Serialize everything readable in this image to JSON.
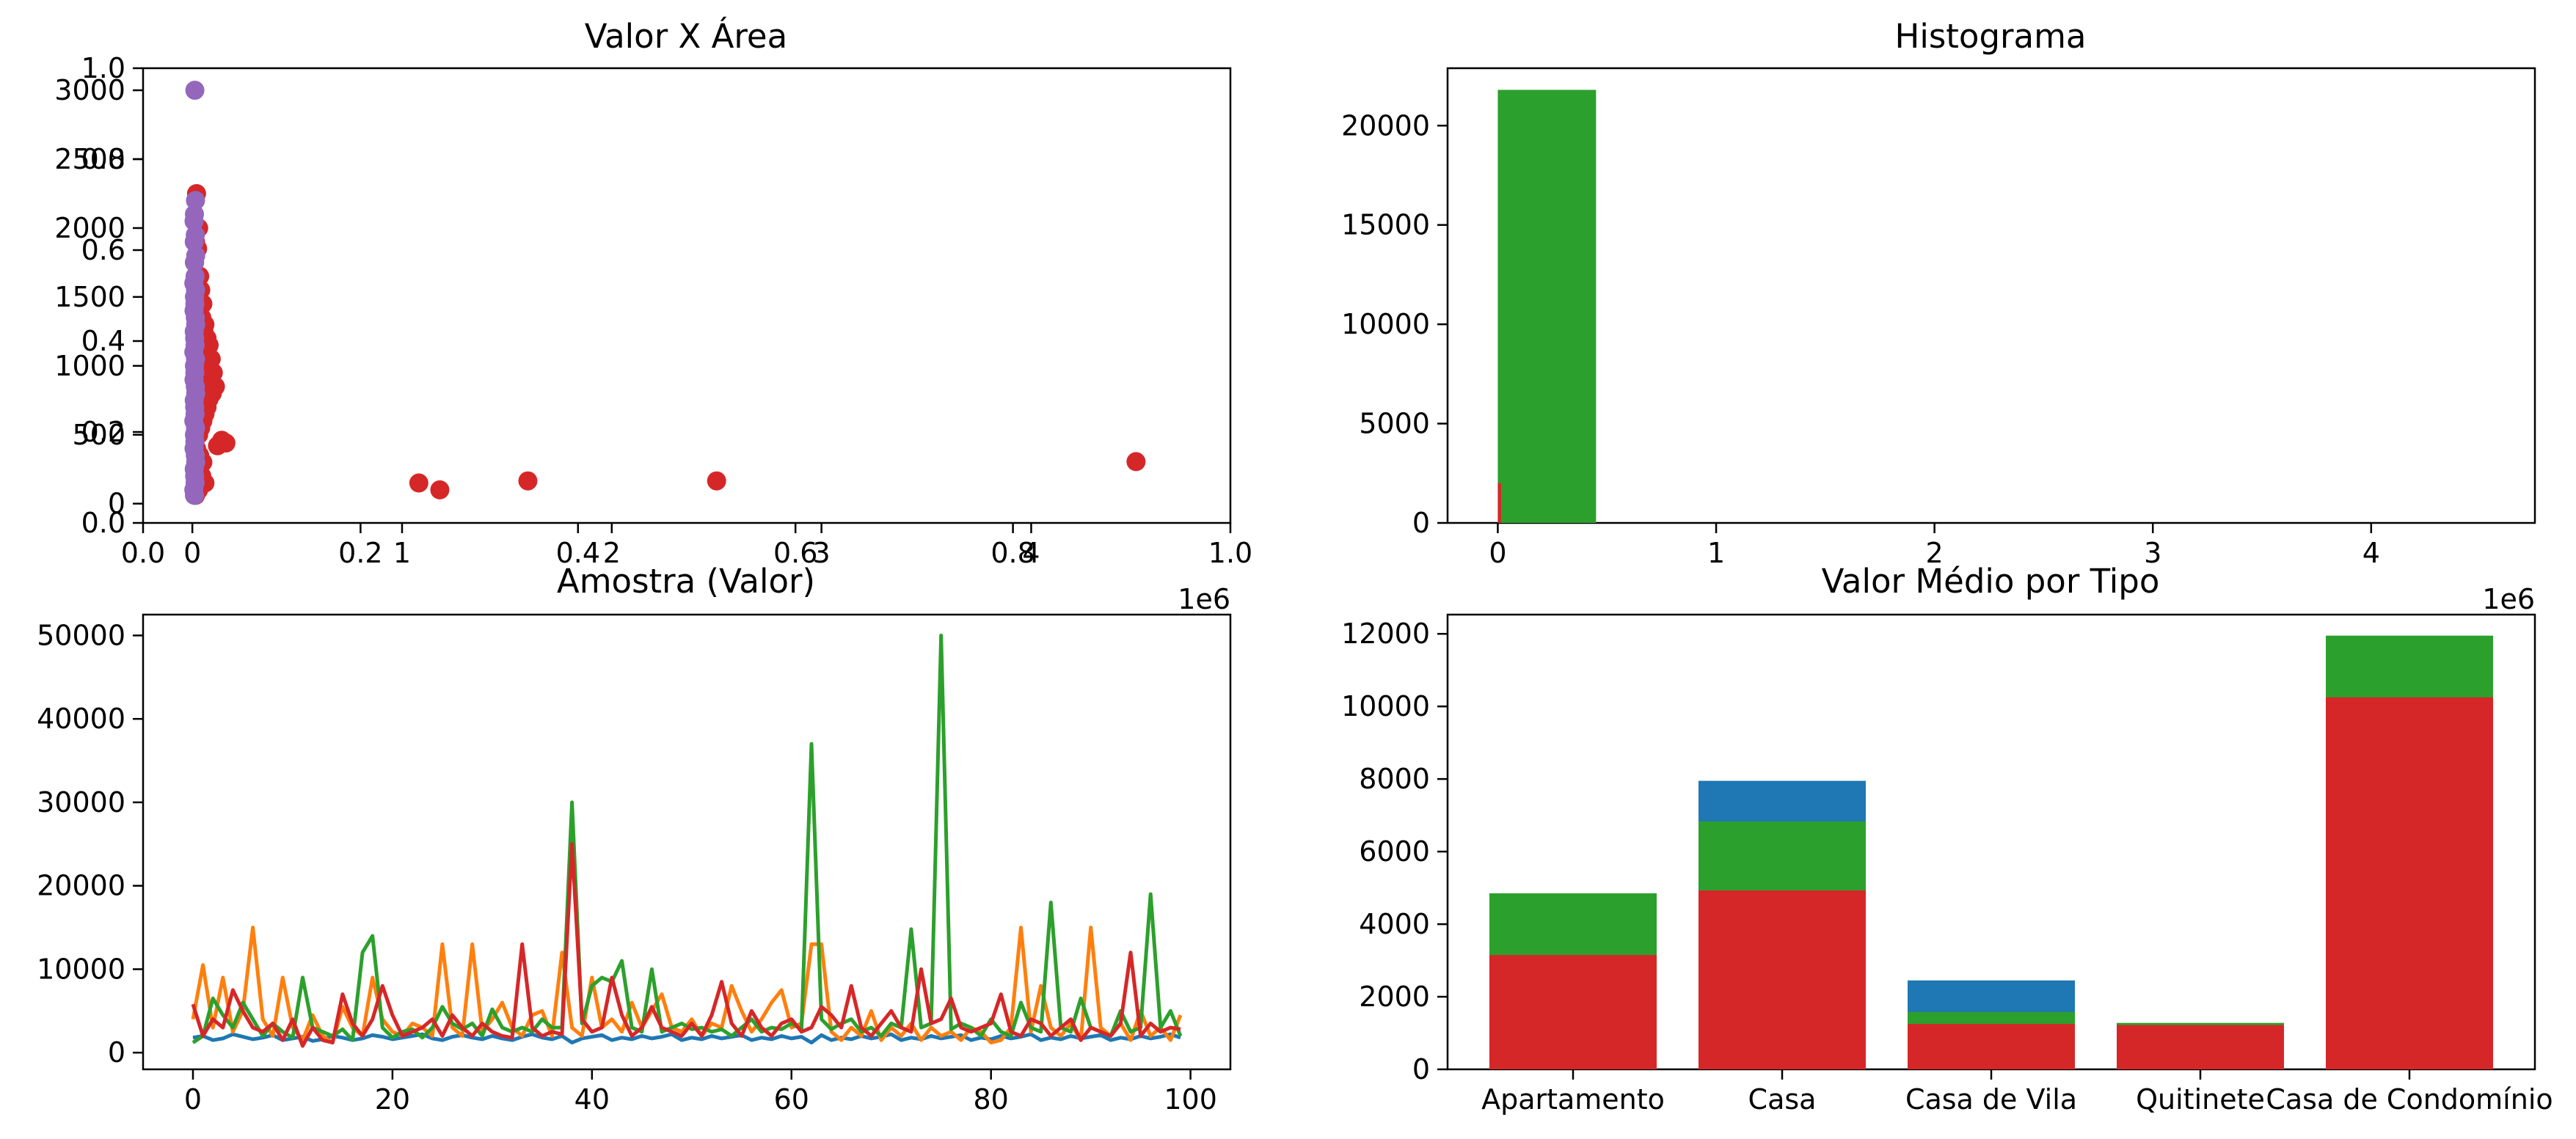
{
  "colors": {
    "blue": "#1f77b4",
    "orange": "#ff7f0e",
    "green": "#2ca02c",
    "red": "#d62728",
    "purple": "#9467bd"
  },
  "chart_data": [
    {
      "type": "scatter",
      "title": "Valor X Área",
      "xlabel": "",
      "ylabel": "",
      "overlay_axes": {
        "xlim": [
          0,
          1
        ],
        "ylim": [
          0,
          1
        ],
        "xticks": [
          "0.0",
          "0.2",
          "0.4",
          "0.6",
          "0.8",
          "1.0"
        ],
        "yticks": [
          "0.0",
          "0.2",
          "0.4",
          "0.6",
          "0.8",
          "1.0"
        ]
      },
      "xlim": [
        -235000,
        4950000
      ],
      "ylim": [
        -140,
        3160
      ],
      "x_scale_label": "1e6",
      "xticks": [
        {
          "value": 0,
          "label": "0"
        },
        {
          "value": 1000000,
          "label": "1"
        },
        {
          "value": 2000000,
          "label": "2"
        },
        {
          "value": 3000000,
          "label": "3"
        },
        {
          "value": 4000000,
          "label": "4"
        }
      ],
      "yticks": [
        {
          "value": 0,
          "label": "0"
        },
        {
          "value": 500,
          "label": "500"
        },
        {
          "value": 1000,
          "label": "1000"
        },
        {
          "value": 1500,
          "label": "1500"
        },
        {
          "value": 2000,
          "label": "2000"
        },
        {
          "value": 2500,
          "label": "2500"
        },
        {
          "value": 3000,
          "label": "3000"
        }
      ],
      "grid": false,
      "series": [
        {
          "color": "red",
          "points": [
            [
              20000,
              2250
            ],
            [
              30000,
              2000
            ],
            [
              15000,
              1900
            ],
            [
              25000,
              1850
            ],
            [
              10000,
              1750
            ],
            [
              35000,
              1650
            ],
            [
              8000,
              1600
            ],
            [
              40000,
              1550
            ],
            [
              30000,
              1500
            ],
            [
              50000,
              1450
            ],
            [
              12000,
              1400
            ],
            [
              45000,
              1350
            ],
            [
              60000,
              1300
            ],
            [
              55000,
              1250
            ],
            [
              70000,
              1200
            ],
            [
              80000,
              1150
            ],
            [
              65000,
              1100
            ],
            [
              90000,
              1050
            ],
            [
              75000,
              1000
            ],
            [
              100000,
              950
            ],
            [
              85000,
              900
            ],
            [
              110000,
              850
            ],
            [
              95000,
              800
            ],
            [
              80000,
              760
            ],
            [
              70000,
              700
            ],
            [
              60000,
              650
            ],
            [
              50000,
              600
            ],
            [
              40000,
              550
            ],
            [
              30000,
              500
            ],
            [
              140000,
              460
            ],
            [
              160000,
              440
            ],
            [
              120000,
              420
            ],
            [
              20000,
              400
            ],
            [
              35000,
              350
            ],
            [
              50000,
              300
            ],
            [
              25000,
              250
            ],
            [
              45000,
              200
            ],
            [
              60000,
              150
            ],
            [
              30000,
              100
            ],
            [
              15000,
              60
            ],
            [
              1080000,
              150
            ],
            [
              1180000,
              100
            ],
            [
              1600000,
              165
            ],
            [
              2500000,
              165
            ],
            [
              4500000,
              305
            ]
          ]
        },
        {
          "color": "purple",
          "points": [
            [
              12000,
              3000
            ],
            [
              15000,
              2200
            ],
            [
              10000,
              2100
            ],
            [
              8000,
              2050
            ],
            [
              14000,
              1950
            ],
            [
              9000,
              1900
            ],
            [
              16000,
              1800
            ],
            [
              11000,
              1750
            ],
            [
              13000,
              1650
            ],
            [
              7000,
              1600
            ],
            [
              15000,
              1550
            ],
            [
              10000,
              1500
            ],
            [
              12000,
              1450
            ],
            [
              8000,
              1400
            ],
            [
              14000,
              1350
            ],
            [
              16000,
              1300
            ],
            [
              9000,
              1250
            ],
            [
              11000,
              1200
            ],
            [
              13000,
              1150
            ],
            [
              7000,
              1100
            ],
            [
              15000,
              1050
            ],
            [
              10000,
              1000
            ],
            [
              12000,
              950
            ],
            [
              8000,
              900
            ],
            [
              14000,
              850
            ],
            [
              16000,
              800
            ],
            [
              9000,
              750
            ],
            [
              11000,
              700
            ],
            [
              13000,
              650
            ],
            [
              7000,
              600
            ],
            [
              15000,
              550
            ],
            [
              10000,
              500
            ],
            [
              12000,
              450
            ],
            [
              8000,
              400
            ],
            [
              14000,
              350
            ],
            [
              16000,
              300
            ],
            [
              9000,
              250
            ],
            [
              11000,
              200
            ],
            [
              13000,
              150
            ],
            [
              7000,
              100
            ],
            [
              10000,
              60
            ]
          ]
        }
      ]
    },
    {
      "type": "histogram",
      "title": "Histograma",
      "xlabel": "",
      "ylabel": "",
      "xlim": [
        -230000,
        4750000
      ],
      "ylim": [
        0,
        22890
      ],
      "x_scale_label": "1e6",
      "xticks": [
        {
          "value": 0,
          "label": "0"
        },
        {
          "value": 1000000,
          "label": "1"
        },
        {
          "value": 2000000,
          "label": "2"
        },
        {
          "value": 3000000,
          "label": "3"
        },
        {
          "value": 4000000,
          "label": "4"
        }
      ],
      "yticks": [
        {
          "value": 0,
          "label": "0"
        },
        {
          "value": 5000,
          "label": "5000"
        },
        {
          "value": 10000,
          "label": "10000"
        },
        {
          "value": 15000,
          "label": "15000"
        },
        {
          "value": 20000,
          "label": "20000"
        }
      ],
      "grid": false,
      "series": [
        {
          "color": "green",
          "bins": [
            [
              0,
              450000,
              21800
            ]
          ]
        },
        {
          "color": "red",
          "bins": [
            [
              0,
              15000,
              2000
            ]
          ]
        }
      ]
    },
    {
      "type": "line",
      "title": "Amostra (Valor)",
      "xlabel": "",
      "ylabel": "",
      "xlim": [
        -5,
        104
      ],
      "ylim": [
        -2000,
        52500
      ],
      "xticks": [
        {
          "value": 0,
          "label": "0"
        },
        {
          "value": 20,
          "label": "20"
        },
        {
          "value": 40,
          "label": "40"
        },
        {
          "value": 60,
          "label": "60"
        },
        {
          "value": 80,
          "label": "80"
        },
        {
          "value": 100,
          "label": "100"
        }
      ],
      "yticks": [
        {
          "value": 0,
          "label": "0"
        },
        {
          "value": 10000,
          "label": "10000"
        },
        {
          "value": 20000,
          "label": "20000"
        },
        {
          "value": 30000,
          "label": "30000"
        },
        {
          "value": 40000,
          "label": "40000"
        },
        {
          "value": 50000,
          "label": "50000"
        }
      ],
      "grid": false,
      "series": [
        {
          "color": "blue",
          "values": [
            1800,
            2000,
            1500,
            1700,
            2200,
            1900,
            1600,
            1800,
            2100,
            1500,
            1700,
            1900,
            1400,
            1600,
            2000,
            1800,
            1500,
            1700,
            2100,
            1900,
            1600,
            1800,
            2000,
            2200,
            1700,
            1500,
            1900,
            2100,
            1800,
            1600,
            2000,
            1700,
            1500,
            1900,
            2200,
            1800,
            1600,
            2000,
            1200,
            1700,
            1900,
            2100,
            1500,
            1800,
            1600,
            2000,
            1700,
            1900,
            2200,
            1500,
            1800,
            1600,
            2000,
            1700,
            1900,
            2100,
            1500,
            1800,
            1600,
            2000,
            1700,
            1900,
            1200,
            2100,
            1500,
            1800,
            1600,
            2000,
            1700,
            1900,
            2200,
            1500,
            1800,
            1600,
            2000,
            1700,
            1900,
            2100,
            1500,
            1800,
            1600,
            2000,
            1700,
            1900,
            2200,
            1500,
            1800,
            1600,
            2000,
            1700,
            1900,
            2100,
            1500,
            1800,
            1600,
            2000,
            1700,
            1900,
            2200,
            1800
          ]
        },
        {
          "color": "orange",
          "values": [
            4000,
            10500,
            3000,
            9000,
            2500,
            5000,
            15000,
            4000,
            2000,
            9000,
            3000,
            1500,
            4500,
            2000,
            1200,
            5500,
            3000,
            2000,
            9000,
            4000,
            2500,
            2000,
            3500,
            3000,
            2000,
            13000,
            3000,
            2000,
            13000,
            2500,
            4000,
            6000,
            3000,
            2000,
            4500,
            5000,
            2000,
            12000,
            3000,
            2000,
            9000,
            3000,
            4000,
            2500,
            6000,
            3000,
            5000,
            7000,
            3000,
            2500,
            4000,
            2000,
            3500,
            3000,
            8000,
            5000,
            2500,
            4000,
            6000,
            7500,
            3000,
            3500,
            13000,
            13000,
            2500,
            1500,
            3000,
            2000,
            5000,
            1500,
            3000,
            2000,
            3500,
            1500,
            3000,
            2000,
            2500,
            1500,
            3000,
            2500,
            1200,
            1500,
            3000,
            15000,
            2500,
            8000,
            3000,
            2000,
            3500,
            1500,
            15000,
            3000,
            2000,
            3500,
            1500,
            5000,
            2000,
            3000,
            1500,
            4500
          ]
        },
        {
          "color": "green",
          "values": [
            1200,
            2000,
            6500,
            4500,
            3000,
            6000,
            4000,
            2000,
            3500,
            2500,
            1800,
            9000,
            3000,
            2500,
            2000,
            2800,
            1500,
            12000,
            14000,
            3000,
            1800,
            2500,
            2800,
            1800,
            3000,
            5500,
            3500,
            2800,
            3500,
            2000,
            5200,
            3000,
            2500,
            3000,
            2500,
            4000,
            3000,
            3000,
            30000,
            3500,
            8000,
            9000,
            8500,
            11000,
            3000,
            2500,
            10000,
            2500,
            3000,
            3500,
            2800,
            3000,
            2500,
            2800,
            2000,
            3000,
            4000,
            2500,
            3000,
            2800,
            3500,
            2800,
            37000,
            4000,
            2800,
            3500,
            4000,
            2500,
            3000,
            2000,
            3500,
            3000,
            14800,
            3000,
            3500,
            50000,
            2800,
            3500,
            3000,
            2000,
            4000,
            2500,
            2000,
            6000,
            3000,
            2500,
            18000,
            3000,
            2500,
            6500,
            3000,
            2500,
            2000,
            5000,
            2500,
            3000,
            19000,
            3000,
            5000,
            2000
          ]
        },
        {
          "color": "red",
          "values": [
            5800,
            2000,
            4000,
            3000,
            7500,
            5000,
            3000,
            2500,
            3500,
            1500,
            4000,
            800,
            3000,
            1500,
            1200,
            7000,
            3500,
            2000,
            4000,
            8000,
            4500,
            2000,
            2500,
            3000,
            4000,
            2000,
            4500,
            3000,
            2000,
            3500,
            2500,
            2000,
            1800,
            13000,
            3000,
            2000,
            2500,
            2200,
            25000,
            4000,
            2500,
            3000,
            9000,
            4500,
            2000,
            3000,
            5500,
            3000,
            2500,
            2000,
            3500,
            2000,
            4500,
            8500,
            3500,
            2000,
            5000,
            3000,
            2000,
            3500,
            4000,
            2500,
            3000,
            5500,
            4500,
            3000,
            8000,
            3000,
            2000,
            3500,
            5000,
            3000,
            2500,
            10000,
            3500,
            4000,
            6500,
            3000,
            2500,
            3000,
            3500,
            7000,
            2500,
            2000,
            4000,
            3500,
            2000,
            3000,
            4000,
            1500,
            3000,
            2500,
            2000,
            3500,
            12000,
            2000,
            3500,
            2500,
            3000,
            2800
          ]
        }
      ]
    },
    {
      "type": "bar",
      "title": "Valor Médio por Tipo",
      "xlabel": "",
      "ylabel": "",
      "categories": [
        "Apartamento",
        "Casa",
        "Casa de Vila",
        "Quitinete",
        "Casa de Condomínio"
      ],
      "xlim": [
        -0.6,
        4.6
      ],
      "ylim": [
        0,
        12530
      ],
      "yticks": [
        {
          "value": 0,
          "label": "0"
        },
        {
          "value": 2000,
          "label": "2000"
        },
        {
          "value": 4000,
          "label": "4000"
        },
        {
          "value": 6000,
          "label": "6000"
        },
        {
          "value": 8000,
          "label": "8000"
        },
        {
          "value": 10000,
          "label": "10000"
        },
        {
          "value": 12000,
          "label": "12000"
        }
      ],
      "grid": false,
      "series": [
        {
          "color": "blue",
          "values": [
            null,
            7950,
            2450,
            null,
            null
          ]
        },
        {
          "color": "green",
          "values": [
            4850,
            6830,
            1580,
            1280,
            11950
          ]
        },
        {
          "color": "red",
          "values": [
            3150,
            4930,
            1250,
            1220,
            10250
          ]
        }
      ]
    }
  ]
}
